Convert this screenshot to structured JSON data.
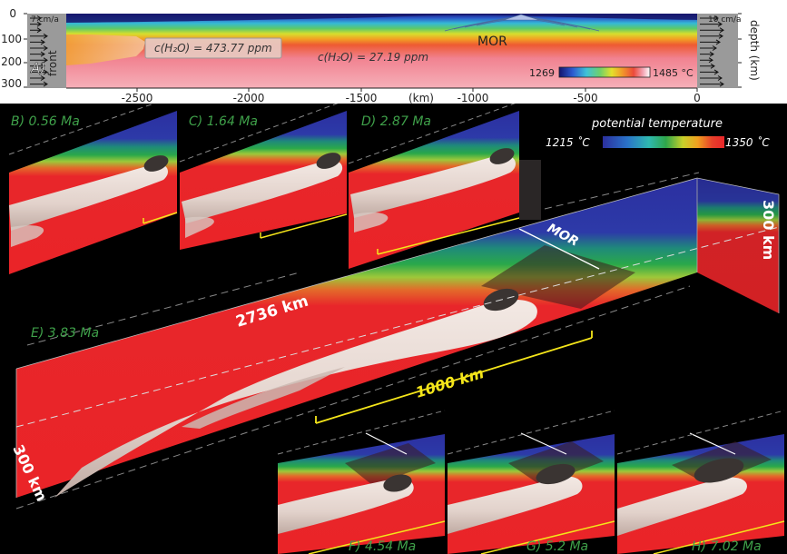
{
  "panel_a": {
    "label": "A)",
    "depth_ticks": [
      "0",
      "100",
      "200",
      "300"
    ],
    "depth_axis_label": "depth (km)",
    "x_ticks": [
      "-2500",
      "-2000",
      "-1500",
      "(km)",
      "-1000",
      "-500",
      "0"
    ],
    "left_velocity": "7 cm/a",
    "right_velocity": "10 cm/a",
    "front_label": "front",
    "water_high": "c(H₂O) = 473.77 ppm",
    "water_low": "c(H₂O) = 27.19 ppm",
    "mor_label": "MOR",
    "colorbar_min": "1269",
    "colorbar_max": "1485 °C"
  },
  "legend": {
    "title": "potential temperature",
    "min": "1215 ˚C",
    "max": "1350 ˚C"
  },
  "panels": {
    "b": "B) 0.56 Ma",
    "c": "C) 1.64 Ma",
    "d": "D) 2.87 Ma",
    "e": "E) 3.83 Ma",
    "f": "F) 4.54 Ma",
    "g": "G) 5.2 Ma",
    "h": "H) 7.02 Ma"
  },
  "annotations": {
    "length": "2736 km",
    "scale": "1000 km",
    "depth_right": "300 km",
    "depth_left": "300 km",
    "mor": "MOR"
  },
  "colors": {
    "label_green": "#3fa14a",
    "scale_yellow": "#f5e61a",
    "mantle_red": "#e8262a",
    "surface_blue": "#2b2f9e",
    "plume_white": "#e6d9d3",
    "melt_dark": "#3a3432"
  }
}
